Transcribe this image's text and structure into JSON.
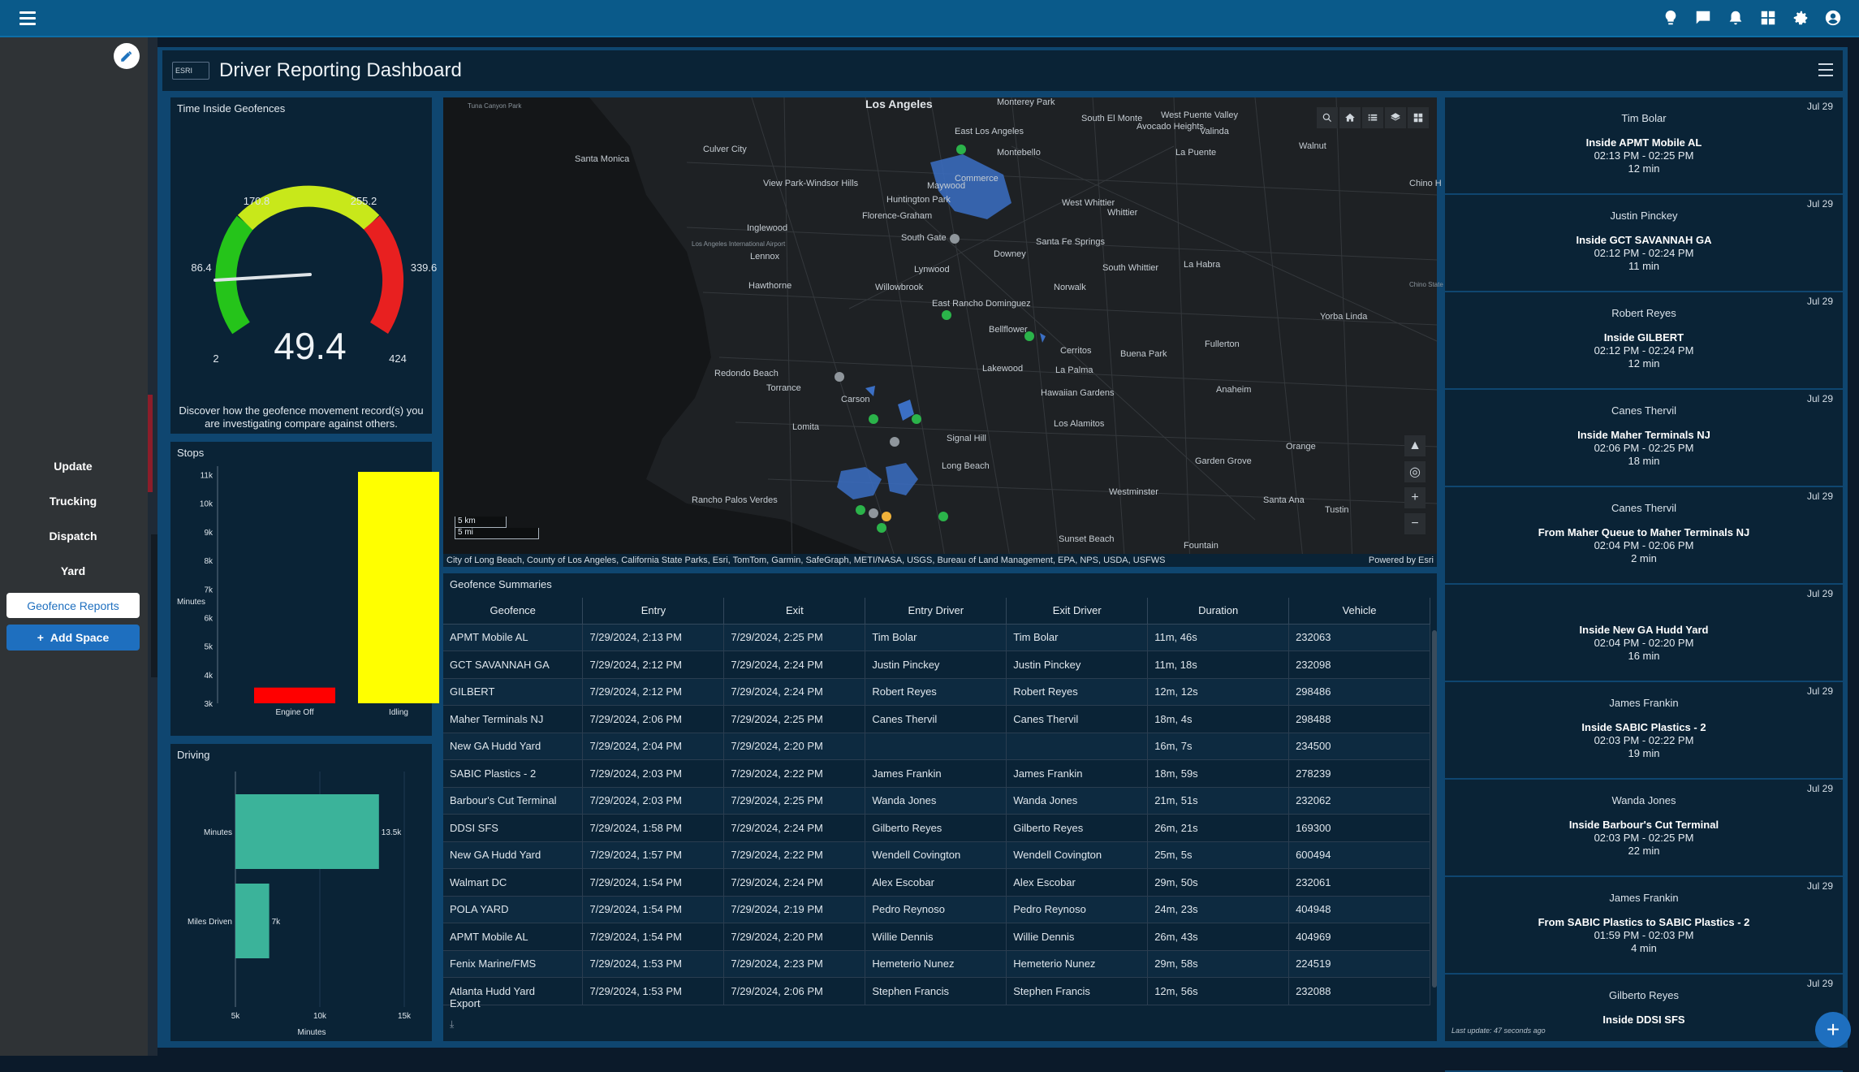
{
  "dashboard": {
    "title": "Driver Reporting Dashboard",
    "logo_text": "ESRI"
  },
  "sidebar": {
    "items": [
      {
        "label": "Update"
      },
      {
        "label": "Trucking"
      },
      {
        "label": "Dispatch"
      },
      {
        "label": "Yard"
      },
      {
        "label": "Geofence Reports"
      }
    ],
    "add_label": "Add Space"
  },
  "gauge": {
    "title": "Time Inside Geofences",
    "value": "49.4",
    "min_label": "2",
    "max_label": "424",
    "ticks": [
      "86.4",
      "170.8",
      "255.2",
      "339.6"
    ],
    "description": "Discover how the geofence movement record(s) you are investigating compare against others."
  },
  "stops": {
    "title": "Stops",
    "ylabel": "Minutes",
    "yticks": [
      "3k",
      "4k",
      "5k",
      "6k",
      "7k",
      "8k",
      "9k",
      "10k",
      "11k"
    ],
    "colors": [
      "#ff0000",
      "#ffff00"
    ]
  },
  "driving": {
    "title": "Driving",
    "xlabel": "Minutes",
    "xticks": [
      "5k",
      "10k",
      "15k"
    ],
    "color": "#3bb39a"
  },
  "chart_data": [
    {
      "type": "bar",
      "title": "Stops",
      "ylabel": "Minutes",
      "categories": [
        "Engine Off",
        "Idling"
      ],
      "values": [
        3550,
        11100
      ],
      "ylim": [
        3000,
        11300
      ]
    },
    {
      "type": "bar",
      "orientation": "horizontal",
      "title": "Driving",
      "xlabel": "Minutes",
      "categories": [
        "Minutes",
        "Miles Driven"
      ],
      "values": [
        13500,
        7000
      ],
      "data_labels": [
        "13.5k",
        "7k"
      ],
      "xlim": [
        5000,
        15000
      ]
    }
  ],
  "map": {
    "attribution": "City of Long Beach, County of Los Angeles, California State Parks, Esri, TomTom, Garmin, SafeGraph, METI/NASA, USGS, Bureau of Land Management, EPA, NPS, USDA, USFWS",
    "powered": "Powered by Esri",
    "scale_km": "5 km",
    "scale_mi": "5 mi",
    "labels": {
      "l1": "Los Angeles",
      "l2": "East Los Angeles",
      "l3": "Montebello",
      "l4": "Santa Monica",
      "l5": "Culver City",
      "l6": "View Park-Windsor Hills",
      "l7": "Huntington Park",
      "l8": "Maywood",
      "l9": "Commerce",
      "l10": "Florence-Graham",
      "l11": "South Gate",
      "l12": "Downey",
      "l13": "Inglewood",
      "l14": "Lennox",
      "l15": "Hawthorne",
      "l16": "Lynwood",
      "l17": "Willowbrook",
      "l18": "Norwalk",
      "l19": "South Whittier",
      "l20": "La Habra",
      "l21": "East Rancho Dominguez",
      "l22": "Bellflower",
      "l23": "Cerritos",
      "l24": "Buena Park",
      "l25": "Fullerton",
      "l26": "Yorba Linda",
      "l27": "Redondo Beach",
      "l28": "Torrance",
      "l29": "Carson",
      "l30": "Lakewood",
      "l31": "La Palma",
      "l32": "Anaheim",
      "l33": "Hawaiian Gardens",
      "l34": "Lomita",
      "l35": "Signal Hill",
      "l36": "Los Alamitos",
      "l37": "Long Beach",
      "l38": "Orange",
      "l39": "Rancho Palos Verdes",
      "l40": "Garden Grove",
      "l41": "Westminster",
      "l42": "Santa Ana",
      "l43": "Tustin",
      "l44": "Sunset Beach",
      "l45": "Fountain",
      "l46": "West Puente Valley",
      "l47": "South El Monte",
      "l48": "Avocado Heights",
      "l49": "Valinda",
      "l50": "La Puente",
      "l51": "Walnut",
      "l52": "Chino H",
      "l53": "West Whittier",
      "l54": "Whittier",
      "l55": "Santa Fe Springs",
      "l56": "Monterey Park",
      "l57": "Tuna Canyon Park",
      "l58": "Los Angeles International Airport",
      "l59": "Chino State"
    }
  },
  "table": {
    "title": "Geofence Summaries",
    "columns": [
      "Geofence",
      "Entry",
      "Exit",
      "Entry Driver",
      "Exit Driver",
      "Duration",
      "Vehicle"
    ],
    "rows": [
      [
        "APMT Mobile AL",
        "7/29/2024, 2:13 PM",
        "7/29/2024, 2:25 PM",
        "Tim Bolar",
        "Tim Bolar",
        "11m, 46s",
        "232063"
      ],
      [
        "GCT SAVANNAH GA",
        "7/29/2024, 2:12 PM",
        "7/29/2024, 2:24 PM",
        "Justin Pinckey",
        "Justin Pinckey",
        "11m, 18s",
        "232098"
      ],
      [
        "GILBERT",
        "7/29/2024, 2:12 PM",
        "7/29/2024, 2:24 PM",
        "Robert Reyes",
        "Robert Reyes",
        "12m, 12s",
        "298486"
      ],
      [
        "Maher Terminals NJ",
        "7/29/2024, 2:06 PM",
        "7/29/2024, 2:25 PM",
        "Canes Thervil",
        "Canes Thervil",
        "18m, 4s",
        "298488"
      ],
      [
        "New GA Hudd Yard",
        "7/29/2024, 2:04 PM",
        "7/29/2024, 2:20 PM",
        "",
        "",
        "16m, 7s",
        "234500"
      ],
      [
        "SABIC Plastics - 2",
        "7/29/2024, 2:03 PM",
        "7/29/2024, 2:22 PM",
        "James Frankin",
        "James Frankin",
        "18m, 59s",
        "278239"
      ],
      [
        "Barbour's Cut Terminal",
        "7/29/2024, 2:03 PM",
        "7/29/2024, 2:25 PM",
        "Wanda Jones",
        "Wanda Jones",
        "21m, 51s",
        "232062"
      ],
      [
        "DDSI SFS",
        "7/29/2024, 1:58 PM",
        "7/29/2024, 2:24 PM",
        "Gilberto Reyes",
        "Gilberto Reyes",
        "26m, 21s",
        "169300"
      ],
      [
        "New GA Hudd Yard",
        "7/29/2024, 1:57 PM",
        "7/29/2024, 2:22 PM",
        "Wendell Covington",
        "Wendell Covington",
        "25m, 5s",
        "600494"
      ],
      [
        "Walmart DC",
        "7/29/2024, 1:54 PM",
        "7/29/2024, 2:24 PM",
        "Alex Escobar",
        "Alex Escobar",
        "29m, 50s",
        "232061"
      ],
      [
        "POLA YARD",
        "7/29/2024, 1:54 PM",
        "7/29/2024, 2:19 PM",
        "Pedro Reynoso",
        "Pedro Reynoso",
        "24m, 23s",
        "404948"
      ],
      [
        "APMT Mobile AL",
        "7/29/2024, 1:54 PM",
        "7/29/2024, 2:20 PM",
        "Willie Dennis",
        "Willie Dennis",
        "26m, 43s",
        "404969"
      ],
      [
        "Fenix Marine/FMS",
        "7/29/2024, 1:53 PM",
        "7/29/2024, 2:23 PM",
        "Hemeterio Nunez",
        "Hemeterio Nunez",
        "29m, 58s",
        "224519"
      ],
      [
        "Atlanta Hudd Yard",
        "7/29/2024, 1:53 PM",
        "7/29/2024, 2:06 PM",
        "Stephen Francis",
        "Stephen Francis",
        "12m, 56s",
        "232088"
      ]
    ],
    "export_label": "Export"
  },
  "feed": {
    "items": [
      {
        "date": "Jul 29",
        "driver": "Tim Bolar",
        "event": "Inside APMT Mobile AL",
        "time": "02:13 PM - 02:25 PM",
        "duration": "12 min"
      },
      {
        "date": "Jul 29",
        "driver": "Justin Pinckey",
        "event": "Inside GCT SAVANNAH GA",
        "time": "02:12 PM - 02:24 PM",
        "duration": "11 min"
      },
      {
        "date": "Jul 29",
        "driver": "Robert Reyes",
        "event": "Inside GILBERT",
        "time": "02:12 PM - 02:24 PM",
        "duration": "12 min"
      },
      {
        "date": "Jul 29",
        "driver": "Canes Thervil",
        "event": "Inside Maher Terminals NJ",
        "time": "02:06 PM - 02:25 PM",
        "duration": "18 min"
      },
      {
        "date": "Jul 29",
        "driver": "Canes Thervil",
        "event": "From Maher Queue to Maher Terminals NJ",
        "time": "02:04 PM - 02:06 PM",
        "duration": "2 min"
      },
      {
        "date": "Jul 29",
        "driver": "",
        "event": "Inside New GA Hudd Yard",
        "time": "02:04 PM - 02:20 PM",
        "duration": "16 min"
      },
      {
        "date": "Jul 29",
        "driver": "James Frankin",
        "event": "Inside SABIC Plastics - 2",
        "time": "02:03 PM - 02:22 PM",
        "duration": "19 min"
      },
      {
        "date": "Jul 29",
        "driver": "Wanda Jones",
        "event": "Inside Barbour's Cut Terminal",
        "time": "02:03 PM - 02:25 PM",
        "duration": "22 min"
      },
      {
        "date": "Jul 29",
        "driver": "James Frankin",
        "event": "From SABIC Plastics to SABIC Plastics - 2",
        "time": "01:59 PM - 02:03 PM",
        "duration": "4 min"
      },
      {
        "date": "Jul 29",
        "driver": "Gilberto Reyes",
        "event": "Inside DDSI SFS",
        "time": "",
        "duration": ""
      }
    ],
    "footer": "Last update: 47 seconds ago"
  }
}
